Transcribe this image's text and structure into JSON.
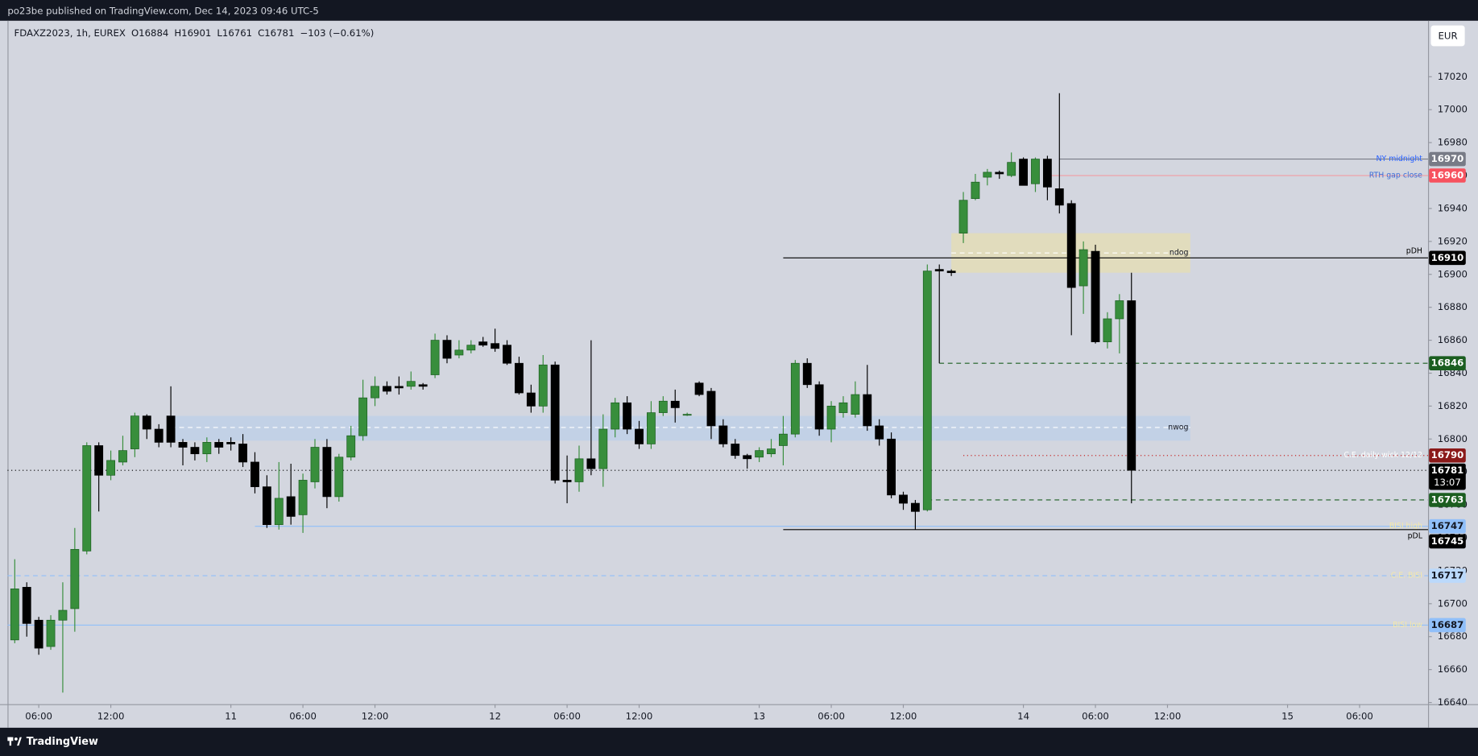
{
  "header": {
    "published": "po23be published on TradingView.com, Dec 14, 2023 09:46 UTC-5",
    "brand": "TradingView"
  },
  "chart_data": {
    "type": "candlestick",
    "title": "FDAXZ2023, 1h, EUREX",
    "ohlc_legend": [
      {
        "label": "O",
        "value": 16884
      },
      {
        "label": "H",
        "value": 16901
      },
      {
        "label": "L",
        "value": 16761
      },
      {
        "label": "C",
        "value": 16781
      }
    ],
    "change": "−103 (−0.61%)",
    "currency": "EUR",
    "up_color": "#388e3c",
    "down_color": "#000000",
    "open": [
      16678,
      16710,
      16690,
      16674,
      16690,
      16697,
      16732,
      16796,
      16778,
      16786,
      16794,
      16814,
      16806,
      16814,
      16798,
      16795,
      16791,
      16798,
      16798,
      16797,
      16786,
      16771,
      16748,
      16765,
      16754,
      16774,
      16795,
      16765,
      16789,
      16802,
      16825,
      16832,
      16832,
      16832,
      16833,
      16839,
      16860,
      16851,
      16854,
      16859,
      16858,
      16857,
      16846,
      16828,
      16820,
      16845,
      16775,
      16774,
      16788,
      16782,
      16806,
      16822,
      16806,
      16797,
      16816,
      16823,
      16815,
      16834,
      16829,
      16808,
      16797,
      16790,
      16789,
      16791,
      16796,
      16803,
      16846,
      16833,
      16806,
      16816,
      16815,
      16827,
      16808,
      16800,
      16766,
      16761,
      16757,
      16903,
      16902,
      16925,
      16946,
      16959,
      16962,
      16960,
      16970,
      16955,
      16970,
      16952,
      16943,
      16893,
      16914,
      16859,
      16873,
      16884
    ],
    "high": [
      16727,
      16713,
      16692,
      16693,
      16713,
      16746,
      16798,
      16798,
      16793,
      16802,
      16816,
      16815,
      16809,
      16832,
      16800,
      16798,
      16801,
      16800,
      16801,
      16803,
      16792,
      16778,
      16786,
      16785,
      16779,
      16800,
      16800,
      16791,
      16808,
      16836,
      16838,
      16835,
      16838,
      16841,
      16834,
      16864,
      16863,
      16860,
      16860,
      16862,
      16867,
      16860,
      16850,
      16833,
      16851,
      16847,
      16790,
      16796,
      16860,
      16815,
      16825,
      16826,
      16811,
      16823,
      16826,
      16830,
      16816,
      16835,
      16831,
      16812,
      16800,
      16791,
      16795,
      16800,
      16814,
      16848,
      16849,
      16835,
      16823,
      16826,
      16835,
      16845,
      16812,
      16804,
      16768,
      16763,
      16906,
      16906,
      16903,
      16950,
      16961,
      16964,
      16963,
      16974,
      16971,
      16971,
      16972,
      17010,
      16945,
      16920,
      16918,
      16877,
      16888,
      16901
    ],
    "low": [
      16676,
      16680,
      16669,
      16672,
      16646,
      16683,
      16730,
      16756,
      16775,
      16784,
      16789,
      16800,
      16795,
      16795,
      16784,
      16787,
      16786,
      16791,
      16793,
      16783,
      16767,
      16746,
      16745,
      16748,
      16743,
      16770,
      16758,
      16762,
      16787,
      16799,
      16820,
      16827,
      16827,
      16830,
      16830,
      16837,
      16846,
      16849,
      16852,
      16856,
      16853,
      16845,
      16827,
      16816,
      16816,
      16773,
      16761,
      16768,
      16778,
      16771,
      16801,
      16803,
      16794,
      16794,
      16814,
      16810,
      16814,
      16826,
      16800,
      16795,
      16788,
      16782,
      16786,
      16789,
      16784,
      16801,
      16831,
      16802,
      16798,
      16813,
      16813,
      16805,
      16796,
      16764,
      16757,
      16745,
      16756,
      16846,
      16899,
      16919,
      16945,
      16954,
      16958,
      16959,
      16954,
      16950,
      16945,
      16937,
      16863,
      16876,
      16858,
      16855,
      16852,
      16761
    ],
    "close": [
      16709,
      16688,
      16673,
      16690,
      16696,
      16733,
      16796,
      16778,
      16787,
      16793,
      16814,
      16806,
      16798,
      16798,
      16795,
      16791,
      16798,
      16795,
      16797,
      16786,
      16771,
      16748,
      16764,
      16753,
      16775,
      16795,
      16765,
      16789,
      16802,
      16825,
      16832,
      16829,
      16831,
      16835,
      16832,
      16860,
      16849,
      16854,
      16857,
      16857,
      16855,
      16846,
      16828,
      16820,
      16845,
      16775,
      16774,
      16788,
      16782,
      16806,
      16822,
      16806,
      16797,
      16816,
      16823,
      16819,
      16815,
      16827,
      16808,
      16797,
      16790,
      16788,
      16793,
      16794,
      16803,
      16846,
      16833,
      16806,
      16820,
      16822,
      16827,
      16808,
      16800,
      16766,
      16761,
      16756,
      16902,
      16902,
      16901,
      16945,
      16956,
      16962,
      16961,
      16968,
      16954,
      16970,
      16953,
      16942,
      16892,
      16915,
      16859,
      16873,
      16884,
      16781
    ],
    "xlim": [
      -0.6,
      117.7
    ],
    "xticks": [
      {
        "value": 2,
        "label": "06:00"
      },
      {
        "value": 8,
        "label": "12:00"
      },
      {
        "value": 18,
        "label": "11"
      },
      {
        "value": 24,
        "label": "06:00"
      },
      {
        "value": 30,
        "label": "12:00"
      },
      {
        "value": 40,
        "label": "12"
      },
      {
        "value": 46,
        "label": "06:00"
      },
      {
        "value": 52,
        "label": "12:00"
      },
      {
        "value": 62,
        "label": "13"
      },
      {
        "value": 68,
        "label": "06:00"
      },
      {
        "value": 74,
        "label": "12:00"
      },
      {
        "value": 84,
        "label": "14"
      },
      {
        "value": 90,
        "label": "06:00"
      },
      {
        "value": 96,
        "label": "12:00"
      },
      {
        "value": 106,
        "label": "15"
      },
      {
        "value": 112,
        "label": "06:00"
      }
    ],
    "ylim": [
      16639,
      17054
    ],
    "yticks": [
      16640,
      16660,
      16680,
      16700,
      16720,
      16740,
      16760,
      16780,
      16800,
      16820,
      16840,
      16860,
      16880,
      16900,
      16920,
      16940,
      16960,
      16980,
      17000,
      17020
    ],
    "grid": false,
    "zones": [
      {
        "name": "ndog",
        "from": 16901,
        "to": 16925,
        "mid": 16913,
        "start": 78,
        "end": 97.9,
        "color": "rgba(236,226,160,0.55)"
      },
      {
        "name": "nwog",
        "from": 16799,
        "to": 16814,
        "mid": 16807,
        "start": 13,
        "end": 97.9,
        "color": "rgba(173,205,240,0.45)"
      }
    ],
    "levels": [
      {
        "name": "NY midnight",
        "value": 16970,
        "color": "#787b86",
        "style": "solid",
        "start": 87,
        "tag_color": "#787b86",
        "text_color": "#ffffff",
        "name_color": "#2962ff"
      },
      {
        "name": "RTH gap close",
        "value": 16960,
        "color": "#f29ca3",
        "style": "solid",
        "start": 86,
        "tag_color": "#f7525f",
        "text_color": "#ffffff",
        "name_color": "#3d6fd9"
      },
      {
        "name": "pDH",
        "value": 16910,
        "color": "#000000",
        "style": "solid",
        "start": 64,
        "tag_color": "#000000",
        "text_color": "#ffffff",
        "name_color": "#000000",
        "label_position": "above"
      },
      {
        "value": 16846,
        "color": "#1b5e20",
        "style": "dashed",
        "start": 77,
        "tag_color": "#1b5e20",
        "text_color": "#ffffff"
      },
      {
        "name": "C.E. daily wick 12/12",
        "value": 16790,
        "color": "#c62828",
        "style": "dotted",
        "start": 79,
        "tag_color": "#8b1a1a",
        "text_color": "#ffffff",
        "name_color": "#ffffff"
      },
      {
        "value": 16763,
        "color": "#1b5e20",
        "style": "dashed",
        "start": 76,
        "tag_color": "#1b5e20",
        "text_color": "#ffffff"
      },
      {
        "name": "BISI high",
        "value": 16747,
        "color": "#90bff9",
        "style": "solid",
        "start": 20,
        "tag_color": "#90bff9",
        "text_color": "#131722",
        "name_color": "#f5e9a8"
      },
      {
        "name": "pDL",
        "value": 16745,
        "color": "#000000",
        "style": "solid",
        "start": 64,
        "tag_color": "#000000",
        "text_color": "#ffffff",
        "name_color": "#000000",
        "label_position": "below"
      },
      {
        "name": "C.E. BISI",
        "value": 16717,
        "color": "#90bff9",
        "style": "dashed",
        "tag_color": "#bbd9fb",
        "text_color": "#131722",
        "name_color": "#f5e9a8"
      },
      {
        "name": "BISI low",
        "value": 16687,
        "color": "#90bff9",
        "style": "solid",
        "tag_color": "#90bff9",
        "text_color": "#131722",
        "name_color": "#f5e9a8"
      }
    ],
    "last_price": {
      "value": 16781,
      "countdown": "13:07",
      "color": "#000000"
    }
  }
}
